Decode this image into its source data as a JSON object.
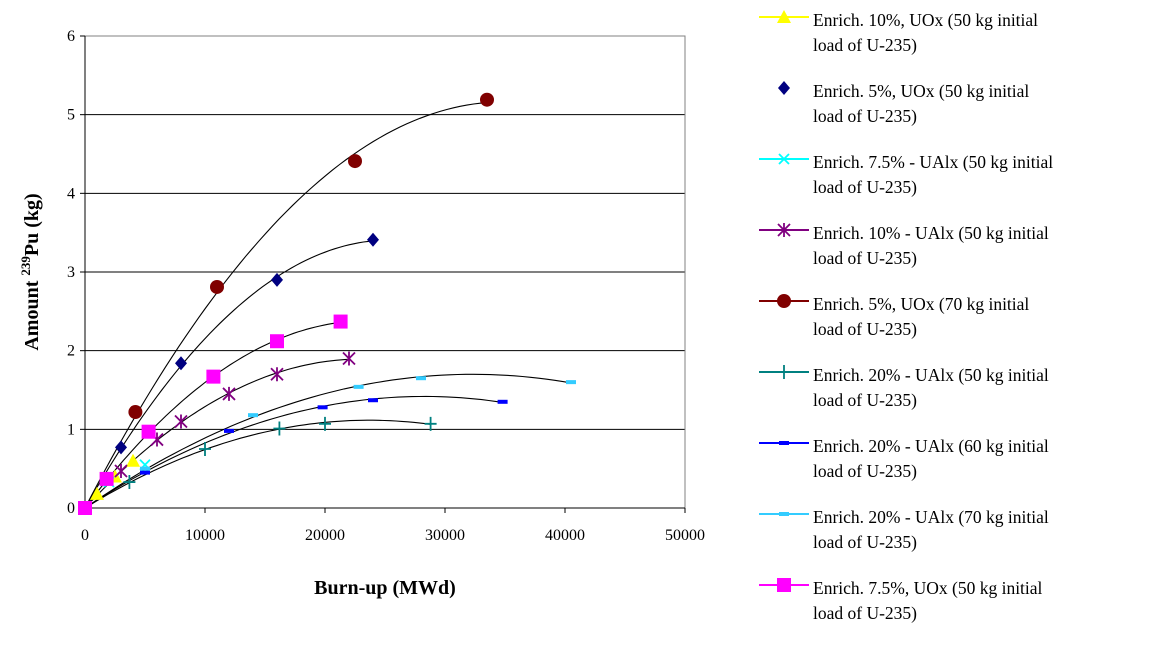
{
  "chart_data": {
    "type": "scatter",
    "title": "",
    "xlabel": "Burn-up (MWd)",
    "ylabel_prefix": "Amount ",
    "ylabel_sup": "239",
    "ylabel_suffix": "Pu (kg)",
    "xlim": [
      0,
      50000
    ],
    "ylim": [
      0,
      6
    ],
    "x_ticks": [
      0,
      10000,
      20000,
      30000,
      40000,
      50000
    ],
    "y_ticks": [
      0,
      1,
      2,
      3,
      4,
      5,
      6
    ],
    "grid": "horizontal",
    "legend_position": "right",
    "series": [
      {
        "name": "Enrich. 10%, UOx (50 kg initial load of U-235)",
        "color": "#ffff00",
        "marker": "triangle",
        "line": true,
        "x": [
          0,
          1000,
          2500,
          4000
        ],
        "y": [
          0,
          0.18,
          0.4,
          0.6
        ]
      },
      {
        "name": "Enrich. 5%, UOx (50 kg initial load of U-235)",
        "color": "#000080",
        "marker": "diamond",
        "line": false,
        "x": [
          0,
          3000,
          8000,
          16000,
          24000
        ],
        "y": [
          0,
          0.77,
          1.84,
          2.9,
          3.41
        ]
      },
      {
        "name": "Enrich. 7.5% - UAlx (50 kg initial load of U-235)",
        "color": "#00ffff",
        "marker": "x",
        "line": true,
        "x": [
          0,
          2000,
          5000
        ],
        "y": [
          0,
          0.33,
          0.55
        ]
      },
      {
        "name": "Enrich. 10% - UAlx (50 kg initial load of U-235)",
        "color": "#800080",
        "marker": "asterisk",
        "line": true,
        "x": [
          0,
          3000,
          6000,
          8000,
          12000,
          16000,
          22000
        ],
        "y": [
          0,
          0.47,
          0.87,
          1.1,
          1.45,
          1.7,
          1.9
        ]
      },
      {
        "name": "Enrich. 5%, UOx (70 kg initial load of U-235)",
        "color": "#800000",
        "marker": "circle",
        "line": true,
        "x": [
          0,
          4200,
          11000,
          22500,
          33500
        ],
        "y": [
          0,
          1.22,
          2.81,
          4.41,
          5.19
        ]
      },
      {
        "name": "Enrich. 20% - UAlx (50 kg initial load of U-235)",
        "color": "#008080",
        "marker": "plus",
        "line": true,
        "x": [
          0,
          3700,
          10000,
          16200,
          20000,
          28800
        ],
        "y": [
          0,
          0.33,
          0.75,
          1.01,
          1.07,
          1.07
        ]
      },
      {
        "name": "Enrich. 20% - UAlx (60 kg initial load of U-235)",
        "color": "#0000ff",
        "marker": "dash",
        "line": true,
        "x": [
          0,
          5000,
          12000,
          19800,
          24000,
          34800
        ],
        "y": [
          0,
          0.45,
          0.98,
          1.28,
          1.37,
          1.35
        ]
      },
      {
        "name": "Enrich. 20% - UAlx (70 kg initial load of U-235)",
        "color": "#33ccff",
        "marker": "dash",
        "line": true,
        "x": [
          0,
          5000,
          14000,
          22800,
          28000,
          40500
        ],
        "y": [
          0,
          0.5,
          1.18,
          1.54,
          1.65,
          1.6
        ]
      },
      {
        "name": "Enrich. 7.5%, UOx (50 kg initial load of U-235)",
        "color": "#ff00ff",
        "marker": "square",
        "line": true,
        "x": [
          0,
          1800,
          5300,
          10700,
          16000,
          21300
        ],
        "y": [
          0,
          0.37,
          0.97,
          1.67,
          2.12,
          2.37
        ]
      }
    ],
    "trendlines": [
      {
        "name": "trend-5pct-70kg",
        "x": [
          0,
          4200,
          11000,
          22500,
          33500
        ],
        "y": [
          0,
          1.22,
          2.81,
          4.41,
          5.19
        ]
      },
      {
        "name": "trend-5pct-50kg",
        "x": [
          0,
          3000,
          8000,
          16000,
          24000
        ],
        "y": [
          0,
          0.77,
          1.84,
          2.9,
          3.41
        ]
      },
      {
        "name": "trend-7.5pct-uox",
        "x": [
          0,
          1800,
          5300,
          10700,
          16000,
          21300
        ],
        "y": [
          0,
          0.37,
          0.97,
          1.67,
          2.12,
          2.37
        ]
      },
      {
        "name": "trend-10pct-ualx",
        "x": [
          0,
          3000,
          6000,
          8000,
          12000,
          16000,
          22000
        ],
        "y": [
          0,
          0.47,
          0.87,
          1.1,
          1.45,
          1.7,
          1.9
        ]
      },
      {
        "name": "trend-20pct-70kg",
        "x": [
          0,
          5000,
          14000,
          22800,
          28000,
          40500
        ],
        "y": [
          0,
          0.5,
          1.18,
          1.54,
          1.65,
          1.6
        ]
      },
      {
        "name": "trend-20pct-60kg",
        "x": [
          0,
          5000,
          12000,
          19800,
          24000,
          34800
        ],
        "y": [
          0,
          0.45,
          0.98,
          1.28,
          1.37,
          1.35
        ]
      },
      {
        "name": "trend-20pct-50kg",
        "x": [
          0,
          3700,
          10000,
          16200,
          20000,
          28800
        ],
        "y": [
          0,
          0.33,
          0.75,
          1.01,
          1.07,
          1.07
        ]
      }
    ]
  },
  "legend": {
    "items": [
      {
        "line1": "Enrich. 10%, UOx (50 kg initial",
        "line2": "load of U-235)"
      },
      {
        "line1": "Enrich. 5%, UOx (50 kg initial",
        "line2": "load of U-235)"
      },
      {
        "line1": "Enrich. 7.5% - UAlx (50 kg initial",
        "line2": "load of U-235)"
      },
      {
        "line1": "Enrich. 10% - UAlx (50 kg initial",
        "line2": "load of U-235)"
      },
      {
        "line1": "Enrich. 5%, UOx (70 kg initial",
        "line2": "load of U-235)"
      },
      {
        "line1": "Enrich. 20% - UAlx (50 kg initial",
        "line2": "load of U-235)"
      },
      {
        "line1": "Enrich. 20% - UAlx (60 kg initial",
        "line2": "load of U-235)"
      },
      {
        "line1": "Enrich. 20% - UAlx (70 kg initial",
        "line2": "load of U-235)"
      },
      {
        "line1": "Enrich. 7.5%, UOx (50 kg initial",
        "line2": "load of U-235)"
      }
    ]
  }
}
